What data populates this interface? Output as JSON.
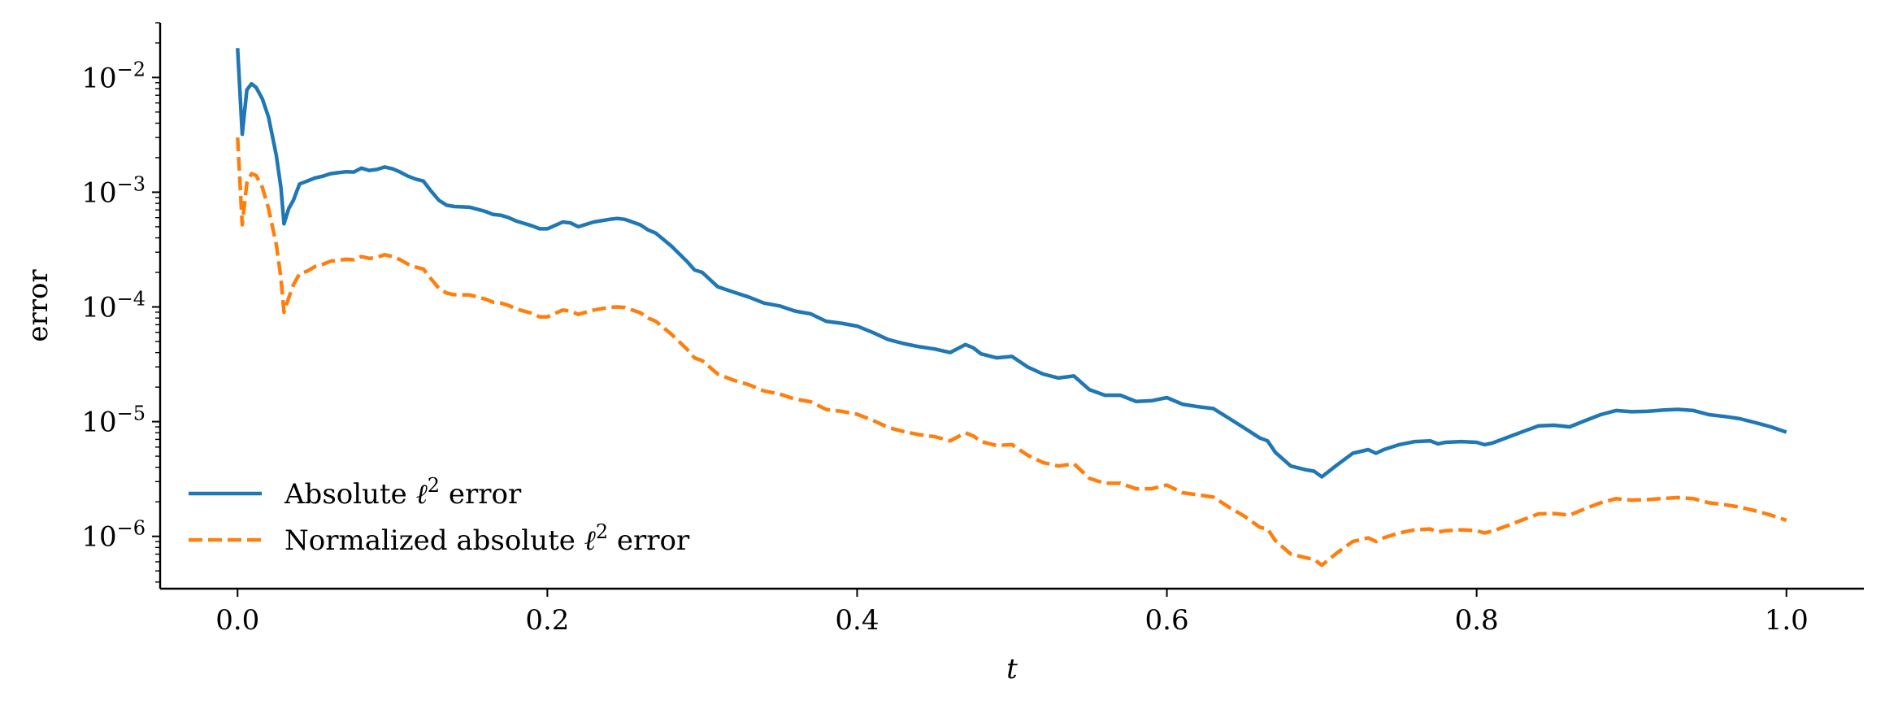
{
  "chart_data": {
    "type": "line",
    "title": "",
    "xlabel": "t",
    "ylabel": "error",
    "xscale": "linear",
    "yscale": "log",
    "xlim": [
      -0.05,
      1.05
    ],
    "ylim": [
      3.5e-07,
      0.03
    ],
    "xticks": [
      0.0,
      0.2,
      0.4,
      0.6,
      0.8,
      1.0
    ],
    "xtick_labels": [
      "0.0",
      "0.2",
      "0.4",
      "0.6",
      "0.8",
      "1.0"
    ],
    "yticks": [
      1e-06,
      1e-05,
      0.0001,
      0.001,
      0.01
    ],
    "ytick_labels": [
      {
        "base": "10",
        "exp": "−6"
      },
      {
        "base": "10",
        "exp": "−5"
      },
      {
        "base": "10",
        "exp": "−4"
      },
      {
        "base": "10",
        "exp": "−3"
      },
      {
        "base": "10",
        "exp": "−2"
      }
    ],
    "grid": false,
    "legend_position": "lower-left",
    "series": [
      {
        "name": "Absolute ℓ² error",
        "label_main": "Absolute ",
        "label_ell": "ℓ",
        "label_sup": "2",
        "label_tail": " error",
        "color": "#1f77b4",
        "style": "solid",
        "points": [
          [
            0.0,
            0.018
          ],
          [
            0.003,
            0.0032
          ],
          [
            0.006,
            0.0078
          ],
          [
            0.009,
            0.0088
          ],
          [
            0.012,
            0.0082
          ],
          [
            0.016,
            0.0065
          ],
          [
            0.02,
            0.0045
          ],
          [
            0.025,
            0.0021
          ],
          [
            0.028,
            0.0011
          ],
          [
            0.03,
            0.00053
          ],
          [
            0.033,
            0.00072
          ],
          [
            0.036,
            0.00085
          ],
          [
            0.04,
            0.00118
          ],
          [
            0.045,
            0.00125
          ],
          [
            0.05,
            0.00133
          ],
          [
            0.055,
            0.00138
          ],
          [
            0.06,
            0.00145
          ],
          [
            0.065,
            0.00148
          ],
          [
            0.07,
            0.00151
          ],
          [
            0.075,
            0.0015
          ],
          [
            0.08,
            0.00162
          ],
          [
            0.085,
            0.00155
          ],
          [
            0.09,
            0.00158
          ],
          [
            0.095,
            0.00166
          ],
          [
            0.1,
            0.0016
          ],
          [
            0.105,
            0.0015
          ],
          [
            0.11,
            0.00138
          ],
          [
            0.115,
            0.0013
          ],
          [
            0.12,
            0.00125
          ],
          [
            0.125,
            0.00102
          ],
          [
            0.13,
            0.00085
          ],
          [
            0.135,
            0.00077
          ],
          [
            0.14,
            0.00075
          ],
          [
            0.15,
            0.00074
          ],
          [
            0.16,
            0.00068
          ],
          [
            0.165,
            0.00064
          ],
          [
            0.17,
            0.00063
          ],
          [
            0.175,
            0.0006
          ],
          [
            0.18,
            0.00056
          ],
          [
            0.19,
            0.00051
          ],
          [
            0.195,
            0.00048
          ],
          [
            0.2,
            0.00048
          ],
          [
            0.21,
            0.00055
          ],
          [
            0.215,
            0.00054
          ],
          [
            0.22,
            0.0005
          ],
          [
            0.23,
            0.00055
          ],
          [
            0.24,
            0.00058
          ],
          [
            0.245,
            0.00059
          ],
          [
            0.25,
            0.00058
          ],
          [
            0.26,
            0.00052
          ],
          [
            0.265,
            0.00047
          ],
          [
            0.27,
            0.00044
          ],
          [
            0.28,
            0.00034
          ],
          [
            0.29,
            0.00025
          ],
          [
            0.295,
            0.00021
          ],
          [
            0.3,
            0.0002
          ],
          [
            0.31,
            0.00015
          ],
          [
            0.32,
            0.000135
          ],
          [
            0.33,
            0.000122
          ],
          [
            0.34,
            0.000108
          ],
          [
            0.35,
            0.000102
          ],
          [
            0.36,
            9.2e-05
          ],
          [
            0.37,
            8.7e-05
          ],
          [
            0.38,
            7.5e-05
          ],
          [
            0.39,
            7.2e-05
          ],
          [
            0.4,
            6.8e-05
          ],
          [
            0.41,
            6e-05
          ],
          [
            0.42,
            5.2e-05
          ],
          [
            0.43,
            4.8e-05
          ],
          [
            0.44,
            4.5e-05
          ],
          [
            0.45,
            4.3e-05
          ],
          [
            0.46,
            4e-05
          ],
          [
            0.47,
            4.7e-05
          ],
          [
            0.475,
            4.4e-05
          ],
          [
            0.48,
            3.9e-05
          ],
          [
            0.49,
            3.6e-05
          ],
          [
            0.5,
            3.7e-05
          ],
          [
            0.51,
            3e-05
          ],
          [
            0.52,
            2.6e-05
          ],
          [
            0.53,
            2.4e-05
          ],
          [
            0.54,
            2.5e-05
          ],
          [
            0.55,
            1.9e-05
          ],
          [
            0.56,
            1.7e-05
          ],
          [
            0.57,
            1.7e-05
          ],
          [
            0.58,
            1.5e-05
          ],
          [
            0.59,
            1.52e-05
          ],
          [
            0.6,
            1.62e-05
          ],
          [
            0.61,
            1.42e-05
          ],
          [
            0.62,
            1.35e-05
          ],
          [
            0.63,
            1.3e-05
          ],
          [
            0.64,
            1.07e-05
          ],
          [
            0.65,
            8.8e-06
          ],
          [
            0.66,
            7.2e-06
          ],
          [
            0.665,
            6.8e-06
          ],
          [
            0.67,
            5.4e-06
          ],
          [
            0.68,
            4.1e-06
          ],
          [
            0.69,
            3.8e-06
          ],
          [
            0.695,
            3.7e-06
          ],
          [
            0.7,
            3.3e-06
          ],
          [
            0.71,
            4.2e-06
          ],
          [
            0.72,
            5.3e-06
          ],
          [
            0.73,
            5.7e-06
          ],
          [
            0.735,
            5.3e-06
          ],
          [
            0.74,
            5.7e-06
          ],
          [
            0.75,
            6.3e-06
          ],
          [
            0.76,
            6.7e-06
          ],
          [
            0.77,
            6.8e-06
          ],
          [
            0.775,
            6.4e-06
          ],
          [
            0.78,
            6.6e-06
          ],
          [
            0.79,
            6.7e-06
          ],
          [
            0.8,
            6.6e-06
          ],
          [
            0.805,
            6.3e-06
          ],
          [
            0.81,
            6.5e-06
          ],
          [
            0.82,
            7.3e-06
          ],
          [
            0.83,
            8.2e-06
          ],
          [
            0.84,
            9.2e-06
          ],
          [
            0.85,
            9.3e-06
          ],
          [
            0.86,
            9e-06
          ],
          [
            0.87,
            1.02e-05
          ],
          [
            0.88,
            1.15e-05
          ],
          [
            0.89,
            1.25e-05
          ],
          [
            0.9,
            1.22e-05
          ],
          [
            0.91,
            1.23e-05
          ],
          [
            0.92,
            1.26e-05
          ],
          [
            0.93,
            1.28e-05
          ],
          [
            0.94,
            1.25e-05
          ],
          [
            0.95,
            1.15e-05
          ],
          [
            0.96,
            1.11e-05
          ],
          [
            0.97,
            1.06e-05
          ],
          [
            0.98,
            9.8e-06
          ],
          [
            0.99,
            9e-06
          ],
          [
            1.0,
            8.1e-06
          ]
        ]
      },
      {
        "name": "Normalized absolute ℓ² error",
        "label_main": "Normalized absolute ",
        "label_ell": "ℓ",
        "label_sup": "2",
        "label_tail": " error",
        "color": "#ff7f0e",
        "style": "dashed",
        "points": [
          [
            0.0,
            0.003
          ],
          [
            0.003,
            0.00052
          ],
          [
            0.006,
            0.0012
          ],
          [
            0.009,
            0.00145
          ],
          [
            0.012,
            0.0014
          ],
          [
            0.016,
            0.0011
          ],
          [
            0.02,
            0.00072
          ],
          [
            0.025,
            0.00035
          ],
          [
            0.028,
            0.00018
          ],
          [
            0.03,
            9e-05
          ],
          [
            0.033,
            0.00012
          ],
          [
            0.036,
            0.000155
          ],
          [
            0.04,
            0.000195
          ],
          [
            0.045,
            0.000205
          ],
          [
            0.05,
            0.000225
          ],
          [
            0.055,
            0.000235
          ],
          [
            0.06,
            0.00025
          ],
          [
            0.065,
            0.000255
          ],
          [
            0.07,
            0.00026
          ],
          [
            0.075,
            0.000258
          ],
          [
            0.08,
            0.000275
          ],
          [
            0.085,
            0.000265
          ],
          [
            0.09,
            0.00027
          ],
          [
            0.095,
            0.000285
          ],
          [
            0.1,
            0.000275
          ],
          [
            0.105,
            0.000258
          ],
          [
            0.11,
            0.000236
          ],
          [
            0.115,
            0.000223
          ],
          [
            0.12,
            0.000214
          ],
          [
            0.125,
            0.000175
          ],
          [
            0.13,
            0.000145
          ],
          [
            0.135,
            0.000132
          ],
          [
            0.14,
            0.000128
          ],
          [
            0.15,
            0.000127
          ],
          [
            0.16,
            0.000117
          ],
          [
            0.165,
            0.00011
          ],
          [
            0.17,
            0.000108
          ],
          [
            0.175,
            0.000103
          ],
          [
            0.18,
            9.6e-05
          ],
          [
            0.19,
            8.8e-05
          ],
          [
            0.195,
            8.2e-05
          ],
          [
            0.2,
            8.2e-05
          ],
          [
            0.21,
            9.4e-05
          ],
          [
            0.215,
            9.2e-05
          ],
          [
            0.22,
            8.6e-05
          ],
          [
            0.23,
            9.4e-05
          ],
          [
            0.24,
            9.9e-05
          ],
          [
            0.245,
            0.0001
          ],
          [
            0.25,
            9.9e-05
          ],
          [
            0.26,
            8.9e-05
          ],
          [
            0.265,
            8e-05
          ],
          [
            0.27,
            7.5e-05
          ],
          [
            0.28,
            5.8e-05
          ],
          [
            0.29,
            4.3e-05
          ],
          [
            0.295,
            3.6e-05
          ],
          [
            0.3,
            3.4e-05
          ],
          [
            0.31,
            2.6e-05
          ],
          [
            0.32,
            2.3e-05
          ],
          [
            0.33,
            2.1e-05
          ],
          [
            0.34,
            1.85e-05
          ],
          [
            0.35,
            1.74e-05
          ],
          [
            0.36,
            1.57e-05
          ],
          [
            0.37,
            1.49e-05
          ],
          [
            0.38,
            1.28e-05
          ],
          [
            0.39,
            1.23e-05
          ],
          [
            0.4,
            1.16e-05
          ],
          [
            0.41,
            1.03e-05
          ],
          [
            0.42,
            8.9e-06
          ],
          [
            0.43,
            8.2e-06
          ],
          [
            0.44,
            7.7e-06
          ],
          [
            0.45,
            7.4e-06
          ],
          [
            0.46,
            6.8e-06
          ],
          [
            0.47,
            8e-06
          ],
          [
            0.475,
            7.5e-06
          ],
          [
            0.48,
            6.7e-06
          ],
          [
            0.49,
            6.2e-06
          ],
          [
            0.5,
            6.3e-06
          ],
          [
            0.51,
            5.1e-06
          ],
          [
            0.52,
            4.4e-06
          ],
          [
            0.53,
            4.1e-06
          ],
          [
            0.54,
            4.3e-06
          ],
          [
            0.55,
            3.2e-06
          ],
          [
            0.56,
            2.9e-06
          ],
          [
            0.57,
            2.9e-06
          ],
          [
            0.58,
            2.6e-06
          ],
          [
            0.59,
            2.6e-06
          ],
          [
            0.6,
            2.8e-06
          ],
          [
            0.61,
            2.4e-06
          ],
          [
            0.62,
            2.3e-06
          ],
          [
            0.63,
            2.2e-06
          ],
          [
            0.64,
            1.8e-06
          ],
          [
            0.65,
            1.5e-06
          ],
          [
            0.66,
            1.2e-06
          ],
          [
            0.665,
            1.16e-06
          ],
          [
            0.67,
            9.2e-07
          ],
          [
            0.68,
            7e-07
          ],
          [
            0.69,
            6.5e-07
          ],
          [
            0.695,
            6.3e-07
          ],
          [
            0.7,
            5.6e-07
          ],
          [
            0.71,
            7.2e-07
          ],
          [
            0.72,
            9e-07
          ],
          [
            0.73,
            9.7e-07
          ],
          [
            0.735,
            9e-07
          ],
          [
            0.74,
            9.7e-07
          ],
          [
            0.75,
            1.07e-06
          ],
          [
            0.76,
            1.14e-06
          ],
          [
            0.77,
            1.16e-06
          ],
          [
            0.775,
            1.09e-06
          ],
          [
            0.78,
            1.12e-06
          ],
          [
            0.79,
            1.14e-06
          ],
          [
            0.8,
            1.12e-06
          ],
          [
            0.805,
            1.07e-06
          ],
          [
            0.81,
            1.11e-06
          ],
          [
            0.82,
            1.24e-06
          ],
          [
            0.83,
            1.4e-06
          ],
          [
            0.84,
            1.57e-06
          ],
          [
            0.85,
            1.58e-06
          ],
          [
            0.86,
            1.53e-06
          ],
          [
            0.87,
            1.74e-06
          ],
          [
            0.88,
            1.96e-06
          ],
          [
            0.89,
            2.13e-06
          ],
          [
            0.9,
            2.07e-06
          ],
          [
            0.91,
            2.09e-06
          ],
          [
            0.92,
            2.14e-06
          ],
          [
            0.93,
            2.18e-06
          ],
          [
            0.94,
            2.13e-06
          ],
          [
            0.95,
            1.96e-06
          ],
          [
            0.96,
            1.89e-06
          ],
          [
            0.97,
            1.8e-06
          ],
          [
            0.98,
            1.67e-06
          ],
          [
            0.99,
            1.53e-06
          ],
          [
            1.0,
            1.38e-06
          ]
        ]
      }
    ]
  }
}
